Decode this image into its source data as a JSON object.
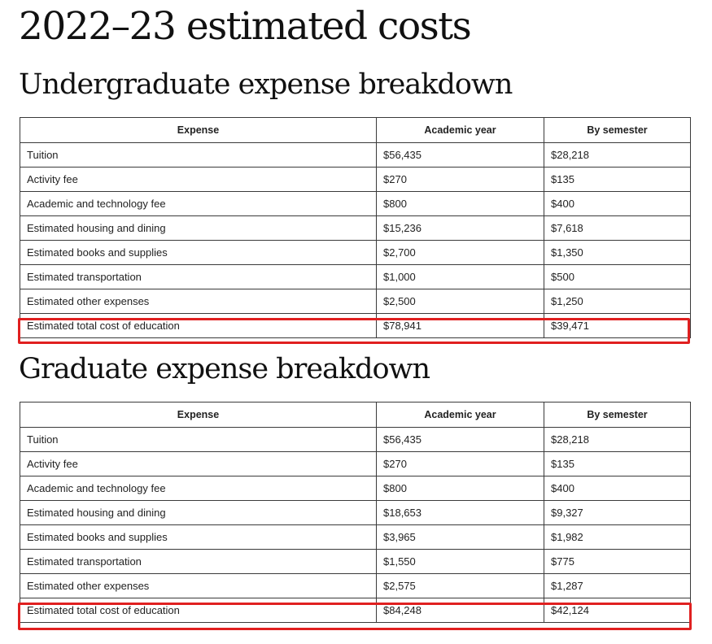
{
  "page_title": "2022–23 estimated costs",
  "undergraduate": {
    "title": "Undergraduate expense breakdown",
    "headers": [
      "Expense",
      "Academic year",
      "By semester"
    ],
    "rows": [
      [
        "Tuition",
        "$56,435",
        "$28,218"
      ],
      [
        "Activity fee",
        "$270",
        "$135"
      ],
      [
        "Academic and technology fee",
        "$800",
        "$400"
      ],
      [
        "Estimated housing and dining",
        "$15,236",
        "$7,618"
      ],
      [
        "Estimated books and supplies",
        "$2,700",
        "$1,350"
      ],
      [
        "Estimated transportation",
        "$1,000",
        "$500"
      ],
      [
        "Estimated other expenses",
        "$2,500",
        "$1,250"
      ],
      [
        "Estimated total cost of education",
        "$78,941",
        "$39,471"
      ]
    ],
    "highlight_color": "#e02020"
  },
  "graduate": {
    "title": "Graduate expense breakdown",
    "headers": [
      "Expense",
      "Academic year",
      "By semester"
    ],
    "rows": [
      [
        "Tuition",
        "$56,435",
        "$28,218"
      ],
      [
        "Activity fee",
        "$270",
        "$135"
      ],
      [
        "Academic and technology fee",
        "$800",
        "$400"
      ],
      [
        "Estimated housing and dining",
        "$18,653",
        "$9,327"
      ],
      [
        "Estimated books and supplies",
        "$3,965",
        "$1,982"
      ],
      [
        "Estimated transportation",
        "$1,550",
        "$775"
      ],
      [
        "Estimated other expenses",
        "$2,575",
        "$1,287"
      ],
      [
        "Estimated total cost of education",
        "$84,248",
        "$42,124"
      ]
    ],
    "highlight_color": "#e02020"
  }
}
